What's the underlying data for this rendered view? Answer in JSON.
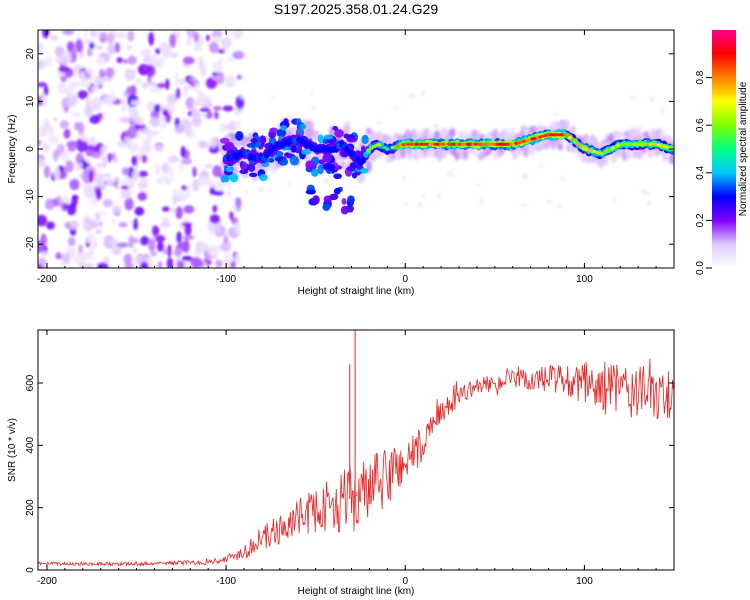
{
  "chart_data": [
    {
      "type": "heatmap",
      "title": "S197.2025.358.01.24.G29",
      "xlabel": "Height of straight line (km)",
      "ylabel": "Frequency (Hz)",
      "xlim": [
        -205,
        150
      ],
      "ylim": [
        -25,
        25
      ],
      "xticks": [
        -200,
        -100,
        0,
        100
      ],
      "yticks": [
        -20,
        -10,
        0,
        10,
        20
      ],
      "colorbar": {
        "label": "Normalized spectral amplitude",
        "range": [
          0.0,
          1.0
        ],
        "ticks": [
          0.0,
          0.2,
          0.4,
          0.6,
          0.8
        ],
        "tick_labels": [
          "0.0",
          "0.2",
          "0.4",
          "0.6",
          "0.8"
        ],
        "colormap": [
          "#ffffff",
          "#e0c8ff",
          "#8000ff",
          "#0000ff",
          "#00c8ff",
          "#00ff80",
          "#80ff00",
          "#ffff00",
          "#ff8000",
          "#ff0000",
          "#ff0090"
        ]
      },
      "trace": {
        "x": [
          -100,
          -90,
          -80,
          -70,
          -60,
          -50,
          -40,
          -35,
          -30,
          -25,
          -20,
          -15,
          -10,
          0,
          20,
          40,
          60,
          70,
          80,
          90,
          100,
          110,
          120,
          130,
          140,
          150
        ],
        "freq": [
          -2,
          -1,
          -2,
          1,
          2,
          0,
          0,
          1,
          -1,
          -3,
          0,
          1,
          0,
          1,
          1,
          1,
          1,
          2,
          3,
          3,
          0,
          -1,
          1,
          1,
          1,
          0
        ]
      },
      "noise_region": [
        -205,
        -100
      ]
    },
    {
      "type": "line",
      "xlabel": "Height of straight line (km)",
      "ylabel": "SNR (10 * v/v)",
      "xlim": [
        -205,
        150
      ],
      "ylim": [
        0,
        770
      ],
      "xticks": [
        -200,
        -100,
        0,
        100
      ],
      "yticks": [
        0,
        200,
        400,
        600
      ],
      "color": "#ee2222",
      "series": [
        {
          "name": "SNR",
          "envelope_x": [
            -205,
            -150,
            -110,
            -100,
            -90,
            -80,
            -70,
            -60,
            -50,
            -40,
            -30,
            -20,
            -10,
            0,
            10,
            20,
            30,
            40,
            60,
            80,
            100,
            120,
            140,
            150
          ],
          "envelope_y": [
            20,
            20,
            25,
            35,
            60,
            100,
            130,
            170,
            190,
            210,
            230,
            250,
            300,
            350,
            400,
            500,
            560,
            590,
            610,
            610,
            590,
            580,
            560,
            560
          ],
          "noise_amp": [
            5,
            6,
            8,
            12,
            25,
            40,
            50,
            60,
            70,
            90,
            110,
            110,
            100,
            80,
            60,
            40,
            30,
            25,
            30,
            50,
            80,
            90,
            90,
            80
          ]
        }
      ],
      "spikes": [
        {
          "x": -31,
          "y": 660
        },
        {
          "x": -28,
          "y": 770
        },
        {
          "x": -27,
          "y": 250
        }
      ]
    }
  ]
}
